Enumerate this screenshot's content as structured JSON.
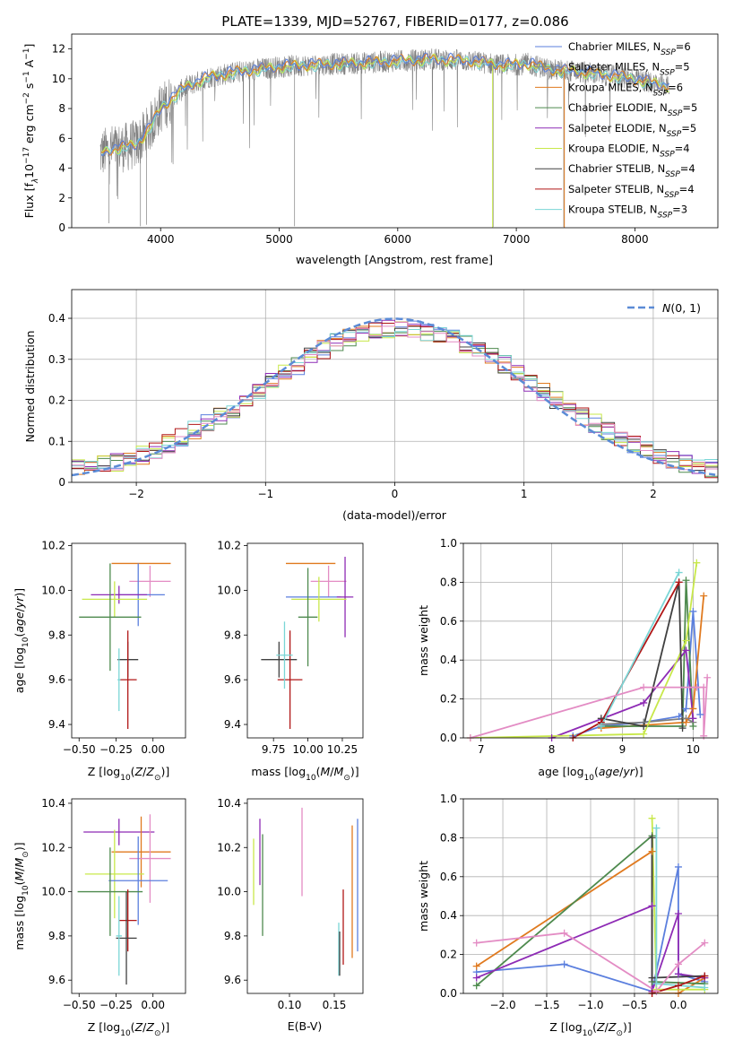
{
  "title": "PLATE=1339, MJD=52767, FIBERID=0177, z=0.086",
  "colors": {
    "Chabrier MILES": "#5b7fde",
    "Salpeter MILES": "#7f7f7f",
    "Kroupa MILES": "#e07a1f",
    "Chabrier ELODIE": "#4e8a4e",
    "Salpeter ELODIE": "#8e2bb5",
    "Kroupa ELODIE": "#c8e84a",
    "Chabrier STELIB": "#404040",
    "Salpeter STELIB": "#b01616",
    "Kroupa STELIB": "#7ad6d6",
    "pink": "#e38cc4"
  },
  "chart_data": [
    {
      "type": "line",
      "xlabel": "wavelength [Angstrom, rest frame]",
      "ylabel": "Flux [f_λ10^-17 erg cm^-2 s^-1 A^-1]",
      "xlim": [
        3250,
        8700
      ],
      "ylim": [
        0,
        13
      ],
      "xticks": [
        4000,
        5000,
        6000,
        7000,
        8000
      ],
      "yticks": [
        0,
        2,
        4,
        6,
        8,
        10,
        12
      ],
      "grid": false,
      "legend_position": "right",
      "spectrum_trend": {
        "x": [
          3500,
          3600,
          3700,
          3800,
          3900,
          4000,
          4100,
          4200,
          4400,
          4600,
          4800,
          5000,
          5200,
          5500,
          5800,
          6000,
          6300,
          6600,
          6900,
          7100,
          7300,
          7500,
          7700,
          7900,
          8100,
          8300
        ],
        "y": [
          5.0,
          5.3,
          5.4,
          5.6,
          6.6,
          8.0,
          8.7,
          9.4,
          10.1,
          10.4,
          10.6,
          10.8,
          10.9,
          11.0,
          11.1,
          11.2,
          11.3,
          11.2,
          10.9,
          11.0,
          10.6,
          10.5,
          10.3,
          10.1,
          9.8,
          9.5
        ]
      },
      "series": [
        {
          "name": "Chabrier MILES, N_SSP=6"
        },
        {
          "name": "Salpeter MILES, N_SSP=5"
        },
        {
          "name": "Kroupa MILES, N_SSP=6"
        },
        {
          "name": "Chabrier ELODIE, N_SSP=5"
        },
        {
          "name": "Salpeter ELODIE, N_SSP=5"
        },
        {
          "name": "Kroupa ELODIE, N_SSP=4"
        },
        {
          "name": "Chabrier STELIB, N_SSP=4"
        },
        {
          "name": "Salpeter STELIB, N_SSP=4"
        },
        {
          "name": "Kroupa STELIB, N_SSP=3"
        }
      ]
    },
    {
      "type": "bar",
      "xlabel": "(data-model)/error",
      "ylabel": "Normed distribution",
      "xlim": [
        -2.5,
        2.5
      ],
      "ylim": [
        0,
        0.47
      ],
      "xticks": [
        -2,
        -1,
        0,
        1,
        2
      ],
      "yticks": [
        0.0,
        0.1,
        0.2,
        0.3,
        0.4
      ],
      "grid": true,
      "legend": "N(0,1)",
      "legend_position": "top-right",
      "reference_curve": "gaussian mean 0 sigma 1",
      "histogram_envelope": {
        "x": [
          -2.5,
          -2.2,
          -2.0,
          -1.8,
          -1.6,
          -1.4,
          -1.2,
          -1.0,
          -0.8,
          -0.6,
          -0.4,
          -0.2,
          0.0,
          0.2,
          0.4,
          0.6,
          0.8,
          1.0,
          1.2,
          1.4,
          1.6,
          1.8,
          2.0,
          2.2,
          2.5
        ],
        "y": [
          0.04,
          0.045,
          0.06,
          0.085,
          0.12,
          0.15,
          0.19,
          0.235,
          0.275,
          0.315,
          0.35,
          0.37,
          0.375,
          0.37,
          0.355,
          0.33,
          0.3,
          0.255,
          0.21,
          0.17,
          0.135,
          0.1,
          0.075,
          0.05,
          0.03
        ]
      }
    },
    {
      "type": "scatter",
      "xlabel": "Z [log10(Z/Z⊙)]",
      "ylabel": "age [log10(age/yr)]",
      "xlim": [
        -0.55,
        0.22
      ],
      "ylim": [
        9.34,
        10.21
      ],
      "xticks": [
        -0.5,
        -0.25,
        0.0
      ],
      "yticks": [
        9.4,
        9.6,
        9.8,
        10.0,
        10.2
      ],
      "xtick_labels": [
        "−0.50",
        "−0.25",
        "0.00"
      ],
      "ytick_labels": [
        "9.4",
        "9.6",
        "9.8",
        "10.0",
        "10.2"
      ],
      "points": [
        {
          "series": "Kroupa MILES",
          "x": -0.08,
          "y": 10.12,
          "xerr": 0.2,
          "yerr": 0.0
        },
        {
          "series": "pink",
          "x": -0.02,
          "y": 10.04,
          "xerr": 0.14,
          "yerr": 0.07
        },
        {
          "series": "Chabrier MILES",
          "x": -0.1,
          "y": 9.98,
          "xerr": 0.18,
          "yerr": 0.14
        },
        {
          "series": "Salpeter ELODIE",
          "x": -0.23,
          "y": 9.98,
          "xerr": 0.19,
          "yerr": 0.04
        },
        {
          "series": "Kroupa ELODIE",
          "x": -0.26,
          "y": 9.96,
          "xerr": 0.22,
          "yerr": 0.08
        },
        {
          "series": "Chabrier ELODIE",
          "x": -0.29,
          "y": 9.88,
          "xerr": 0.21,
          "yerr": 0.24
        },
        {
          "series": "Chabrier STELIB",
          "x": -0.17,
          "y": 9.69,
          "xerr": 0.07,
          "yerr": 0.08
        },
        {
          "series": "Salpeter STELIB",
          "x": -0.17,
          "y": 9.6,
          "xerr": 0.06,
          "yerr": 0.22
        },
        {
          "series": "Kroupa STELIB",
          "x": -0.23,
          "y": 9.6,
          "xerr": 0.01,
          "yerr": 0.14
        }
      ]
    },
    {
      "type": "scatter",
      "xlabel": "mass [log10(M/M⊙)]",
      "ylabel": "",
      "xlim": [
        9.56,
        10.4
      ],
      "ylim": [
        9.34,
        10.21
      ],
      "xticks": [
        9.75,
        10.0,
        10.25
      ],
      "yticks": [
        9.4,
        9.6,
        9.8,
        10.0,
        10.2
      ],
      "xtick_labels": [
        "9.75",
        "10.00",
        "10.25"
      ],
      "ytick_labels": [
        "9.4",
        "9.6",
        "9.8",
        "10.0",
        "10.2"
      ],
      "points": [
        {
          "series": "Kroupa MILES",
          "x": 10.02,
          "y": 10.12,
          "xerr": 0.18,
          "yerr": 0.0
        },
        {
          "series": "pink",
          "x": 10.15,
          "y": 10.04,
          "xerr": 0.13,
          "yerr": 0.07
        },
        {
          "series": "Chabrier MILES",
          "x": 10.04,
          "y": 9.97,
          "xerr": 0.2,
          "yerr": 0.0
        },
        {
          "series": "Salpeter ELODIE",
          "x": 10.27,
          "y": 9.97,
          "xerr": 0.06,
          "yerr": 0.18
        },
        {
          "series": "Kroupa ELODIE",
          "x": 10.08,
          "y": 9.96,
          "xerr": 0.2,
          "yerr": 0.1
        },
        {
          "series": "Chabrier ELODIE",
          "x": 10.0,
          "y": 9.88,
          "xerr": 0.07,
          "yerr": 0.22
        },
        {
          "series": "Chabrier STELIB",
          "x": 9.79,
          "y": 9.69,
          "xerr": 0.13,
          "yerr": 0.08
        },
        {
          "series": "Salpeter STELIB",
          "x": 9.87,
          "y": 9.6,
          "xerr": 0.09,
          "yerr": 0.22
        },
        {
          "series": "Kroupa STELIB",
          "x": 9.83,
          "y": 9.71,
          "xerr": 0.06,
          "yerr": 0.15
        }
      ]
    },
    {
      "type": "line",
      "xlabel": "age [log10(age/yr)]",
      "ylabel": "mass weight",
      "xlim": [
        6.75,
        10.35
      ],
      "ylim": [
        0,
        1.0
      ],
      "xticks": [
        7,
        8,
        9,
        10
      ],
      "yticks": [
        0.0,
        0.2,
        0.4,
        0.6,
        0.8,
        1.0
      ],
      "xtick_labels": [
        "7",
        "8",
        "9",
        "10"
      ],
      "ytick_labels": [
        "0.0",
        "0.2",
        "0.4",
        "0.6",
        "0.8",
        "1.0"
      ],
      "grid": true,
      "series": [
        {
          "series": "Chabrier MILES",
          "x": [
            8.3,
            8.7,
            9.3,
            9.8,
            9.9,
            10.0,
            10.1
          ],
          "y": [
            0.01,
            0.06,
            0.08,
            0.11,
            0.15,
            0.65,
            0.12
          ]
        },
        {
          "series": "Salpeter MILES",
          "x": [
            8.7,
            9.3,
            9.9,
            10.0
          ],
          "y": [
            0.07,
            0.08,
            0.1,
            0.08
          ]
        },
        {
          "series": "Kroupa MILES",
          "x": [
            8.7,
            9.9,
            10.0,
            10.15
          ],
          "y": [
            0.05,
            0.08,
            0.15,
            0.73
          ]
        },
        {
          "series": "Chabrier ELODIE",
          "x": [
            8.7,
            9.85,
            9.9,
            10.0
          ],
          "y": [
            0.06,
            0.06,
            0.81,
            0.06
          ]
        },
        {
          "series": "Salpeter ELODIE",
          "x": [
            8.0,
            9.3,
            9.9,
            10.0
          ],
          "y": [
            0.0,
            0.18,
            0.45,
            0.1
          ]
        },
        {
          "series": "Kroupa ELODIE",
          "x": [
            6.85,
            9.3,
            9.9,
            10.05
          ],
          "y": [
            0.0,
            0.02,
            0.5,
            0.9
          ]
        },
        {
          "series": "Chabrier STELIB",
          "x": [
            8.7,
            9.3,
            9.8,
            9.85
          ],
          "y": [
            0.1,
            0.06,
            0.8,
            0.05
          ]
        },
        {
          "series": "Salpeter STELIB",
          "x": [
            8.3,
            8.7,
            9.8
          ],
          "y": [
            0.0,
            0.08,
            0.8
          ]
        },
        {
          "series": "Kroupa STELIB",
          "x": [
            8.7,
            9.8
          ],
          "y": [
            0.06,
            0.85
          ]
        },
        {
          "series": "pink",
          "x": [
            6.85,
            9.3,
            10.05,
            10.15,
            10.15,
            10.2
          ],
          "y": [
            0.0,
            0.26,
            0.26,
            0.26,
            0.01,
            0.31
          ]
        }
      ]
    },
    {
      "type": "scatter",
      "xlabel": "Z [log10(Z/Z⊙)]",
      "ylabel": "mass [log10(M/M⊙)]",
      "xlim": [
        -0.55,
        0.22
      ],
      "ylim": [
        9.54,
        10.42
      ],
      "xticks": [
        -0.5,
        -0.25,
        0.0
      ],
      "yticks": [
        9.6,
        9.8,
        10.0,
        10.2,
        10.4
      ],
      "xtick_labels": [
        "−0.50",
        "−0.25",
        "0.00"
      ],
      "ytick_labels": [
        "9.6",
        "9.8",
        "10.0",
        "10.2",
        "10.4"
      ],
      "points": [
        {
          "series": "Salpeter ELODIE",
          "x": -0.23,
          "y": 10.27,
          "xerr": 0.24,
          "yerr": 0.06
        },
        {
          "series": "Kroupa MILES",
          "x": -0.08,
          "y": 10.18,
          "xerr": 0.2,
          "yerr": 0.16
        },
        {
          "series": "pink",
          "x": -0.02,
          "y": 10.15,
          "xerr": 0.14,
          "yerr": 0.2
        },
        {
          "series": "Kroupa ELODIE",
          "x": -0.26,
          "y": 10.08,
          "xerr": 0.2,
          "yerr": 0.2
        },
        {
          "series": "Chabrier MILES",
          "x": -0.1,
          "y": 10.05,
          "xerr": 0.2,
          "yerr": 0.2
        },
        {
          "series": "Chabrier ELODIE",
          "x": -0.29,
          "y": 10.0,
          "xerr": 0.22,
          "yerr": 0.2
        },
        {
          "series": "Salpeter STELIB",
          "x": -0.17,
          "y": 9.87,
          "xerr": 0.06,
          "yerr": 0.14
        },
        {
          "series": "Chabrier STELIB",
          "x": -0.18,
          "y": 9.79,
          "xerr": 0.07,
          "yerr": 0.21
        },
        {
          "series": "Kroupa STELIB",
          "x": -0.23,
          "y": 9.8,
          "xerr": 0.02,
          "yerr": 0.18
        }
      ]
    },
    {
      "type": "scatter",
      "xlabel": "E(B-V)",
      "ylabel": "",
      "xlim": [
        0.053,
        0.182
      ],
      "ylim": [
        9.54,
        10.42
      ],
      "xticks": [
        0.1,
        0.15
      ],
      "yticks": [
        9.6,
        9.8,
        10.0,
        10.2,
        10.4
      ],
      "xtick_labels": [
        "0.10",
        "0.15"
      ],
      "ytick_labels": [
        "9.6",
        "9.8",
        "10.0",
        "10.2",
        "10.4"
      ],
      "points": [
        {
          "series": "Kroupa ELODIE",
          "x": 0.06,
          "y": 10.09,
          "xerr": 0.0,
          "yerr": 0.15
        },
        {
          "series": "Salpeter ELODIE",
          "x": 0.067,
          "y": 10.18,
          "xerr": 0.0,
          "yerr": 0.15
        },
        {
          "series": "Chabrier ELODIE",
          "x": 0.07,
          "y": 10.03,
          "xerr": 0.0,
          "yerr": 0.23
        },
        {
          "series": "pink",
          "x": 0.114,
          "y": 10.18,
          "xerr": 0.0,
          "yerr": 0.2
        },
        {
          "series": "Kroupa STELIB",
          "x": 0.155,
          "y": 9.74,
          "xerr": 0.0,
          "yerr": 0.12
        },
        {
          "series": "Chabrier STELIB",
          "x": 0.156,
          "y": 9.72,
          "xerr": 0.0,
          "yerr": 0.1
        },
        {
          "series": "Salpeter STELIB",
          "x": 0.16,
          "y": 9.84,
          "xerr": 0.0,
          "yerr": 0.17
        },
        {
          "series": "Kroupa MILES",
          "x": 0.17,
          "y": 10.0,
          "xerr": 0.0,
          "yerr": 0.3
        },
        {
          "series": "Chabrier MILES",
          "x": 0.176,
          "y": 10.03,
          "xerr": 0.0,
          "yerr": 0.3
        }
      ]
    },
    {
      "type": "line",
      "xlabel": "Z [log10(Z/Z⊙)]",
      "ylabel": "mass weight",
      "xlim": [
        -2.45,
        0.45
      ],
      "ylim": [
        0,
        1.0
      ],
      "xticks": [
        -2.0,
        -1.5,
        -1.0,
        -0.5,
        0.0
      ],
      "yticks": [
        0.0,
        0.2,
        0.4,
        0.6,
        0.8,
        1.0
      ],
      "xtick_labels": [
        "−2.0",
        "−1.5",
        "−1.0",
        "−0.5",
        "0.0"
      ],
      "ytick_labels": [
        "0.0",
        "0.2",
        "0.4",
        "0.6",
        "0.8",
        "1.0"
      ],
      "grid": true,
      "series": [
        {
          "series": "Chabrier MILES",
          "x": [
            -2.3,
            -1.3,
            -0.3,
            0.0,
            0.0,
            0.3
          ],
          "y": [
            0.11,
            0.15,
            0.01,
            0.65,
            0.1,
            0.06
          ]
        },
        {
          "series": "Kroupa MILES",
          "x": [
            -2.3,
            -0.3,
            -0.3,
            0.0,
            0.3
          ],
          "y": [
            0.14,
            0.73,
            0.0,
            0.0,
            0.08
          ]
        },
        {
          "series": "Chabrier ELODIE",
          "x": [
            -2.3,
            -0.3,
            -0.3,
            0.3
          ],
          "y": [
            0.04,
            0.81,
            0.06,
            0.05
          ]
        },
        {
          "series": "Salpeter ELODIE",
          "x": [
            -2.3,
            -0.3,
            -0.3,
            0.0,
            0.0,
            0.3
          ],
          "y": [
            0.08,
            0.45,
            0.01,
            0.41,
            0.1,
            0.08
          ]
        },
        {
          "series": "Kroupa ELODIE",
          "x": [
            -0.3,
            -0.25,
            0.3
          ],
          "y": [
            0.9,
            0.02,
            0.02
          ]
        },
        {
          "series": "Chabrier STELIB",
          "x": [
            -0.3,
            -0.3,
            0.3
          ],
          "y": [
            0.8,
            0.08,
            0.09
          ]
        },
        {
          "series": "Salpeter STELIB",
          "x": [
            -0.3,
            0.0,
            0.3
          ],
          "y": [
            0.0,
            0.04,
            0.09
          ]
        },
        {
          "series": "Kroupa STELIB",
          "x": [
            -0.25,
            -0.25,
            0.3
          ],
          "y": [
            0.85,
            0.05,
            0.03
          ]
        },
        {
          "series": "pink",
          "x": [
            -2.3,
            -1.3,
            -0.25,
            0.0,
            0.3
          ],
          "y": [
            0.26,
            0.31,
            0.01,
            0.15,
            0.26
          ]
        }
      ]
    }
  ]
}
